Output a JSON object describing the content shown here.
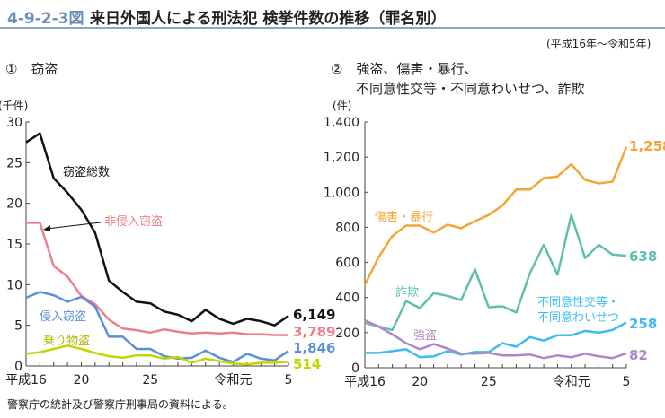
{
  "header": {
    "figure_no": "4-9-2-3図",
    "title": "来日外国人による刑法犯 検挙件数の推移（罪名別）",
    "period": "(平成16年～令和5年)"
  },
  "footer": {
    "note": "警察庁の統計及び警察庁刑事局の資料による。"
  },
  "colors": {
    "accent": "#6a8fb5"
  },
  "chart_data": [
    {
      "type": "line",
      "panel_label": "①　窃盗",
      "ylabel": "(千件)",
      "ylim": [
        0,
        30
      ],
      "yticks": [
        0,
        5,
        10,
        15,
        20,
        25,
        30
      ],
      "xtick_labels": [
        "平成16",
        "20",
        "25",
        "令和元",
        "5"
      ],
      "series": [
        {
          "name": "窃盗総数",
          "color": "#111111",
          "end_label": "6,149",
          "values": [
            27.5,
            28.6,
            23.1,
            21.3,
            19.2,
            16.4,
            10.5,
            9.1,
            7.9,
            7.7,
            6.7,
            6.3,
            5.5,
            6.9,
            5.8,
            5.2,
            5.8,
            5.5,
            5.0,
            6.149
          ]
        },
        {
          "name": "非侵入窃盗",
          "color": "#ee7f8a",
          "end_label": "3,789",
          "values": [
            17.6,
            17.6,
            12.3,
            11.0,
            8.6,
            7.6,
            5.7,
            4.6,
            4.4,
            4.1,
            4.5,
            4.2,
            4.0,
            4.1,
            4.0,
            4.1,
            3.9,
            3.9,
            3.8,
            3.789
          ]
        },
        {
          "name": "侵入窃盗",
          "color": "#5b8fd6",
          "end_label": "1,846",
          "values": [
            8.4,
            9.1,
            8.7,
            7.9,
            8.5,
            7.3,
            3.6,
            3.6,
            2.1,
            2.1,
            1.2,
            0.9,
            1.0,
            1.9,
            1.0,
            0.5,
            1.5,
            0.9,
            0.7,
            1.846
          ]
        },
        {
          "name": "乗り物盗",
          "color": "#c3d600",
          "end_label": "514",
          "values": [
            1.5,
            1.7,
            2.1,
            2.5,
            2.1,
            1.6,
            1.2,
            1.0,
            1.3,
            1.3,
            0.9,
            1.1,
            0.4,
            0.9,
            0.6,
            0.3,
            0.2,
            0.4,
            0.4,
            0.514
          ]
        }
      ]
    },
    {
      "type": "line",
      "panel_label_1": "②　強盗、傷害・暴行、",
      "panel_label_2": "不同意性交等・不同意わいせつ、詐欺",
      "ylabel": "(件)",
      "ylim": [
        0,
        1400
      ],
      "yticks": [
        "0",
        "200",
        "400",
        "600",
        "800",
        "1,000",
        "1,200",
        "1,400"
      ],
      "xtick_labels": [
        "平成16",
        "20",
        "25",
        "令和元",
        "5"
      ],
      "series": [
        {
          "name": "傷害・暴行",
          "color": "#f5a535",
          "end_label": "1,258",
          "values": [
            472,
            630,
            750,
            810,
            810,
            770,
            815,
            795,
            835,
            870,
            925,
            1015,
            1015,
            1080,
            1090,
            1160,
            1070,
            1050,
            1060,
            1258
          ]
        },
        {
          "name": "詐欺",
          "color": "#5fbfae",
          "end_label": "638",
          "values": [
            255,
            235,
            215,
            380,
            340,
            425,
            410,
            385,
            560,
            345,
            350,
            315,
            540,
            700,
            530,
            870,
            625,
            700,
            645,
            638
          ]
        },
        {
          "name": "不同意性交等・不同意わいせつ",
          "name_line1": "不同意性交等・",
          "name_line2": "不同意わいせつ",
          "color": "#3fbcef",
          "end_label": "258",
          "values": [
            85,
            85,
            95,
            105,
            60,
            65,
            95,
            75,
            90,
            90,
            140,
            120,
            175,
            155,
            185,
            185,
            210,
            200,
            215,
            258
          ]
        },
        {
          "name": "強盗",
          "color": "#b186c4",
          "end_label": "82",
          "values": [
            270,
            235,
            190,
            140,
            105,
            135,
            110,
            80,
            80,
            85,
            70,
            70,
            75,
            55,
            70,
            60,
            80,
            65,
            55,
            82
          ]
        }
      ]
    }
  ]
}
